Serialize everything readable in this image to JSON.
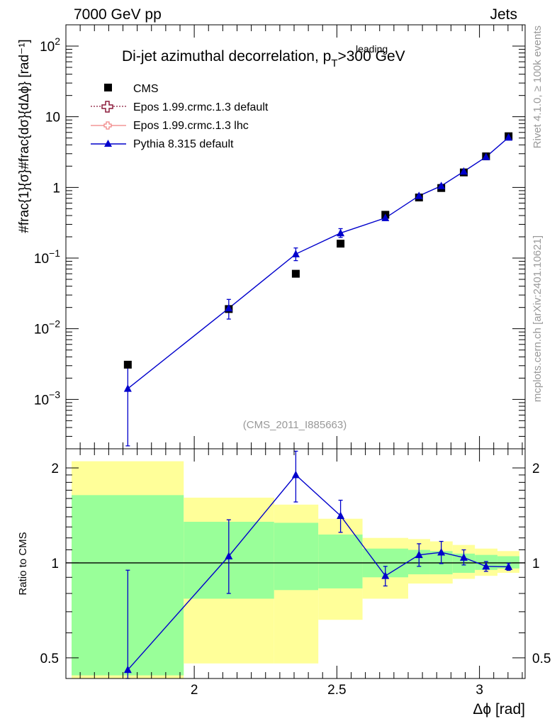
{
  "header": {
    "left": "7000 GeV pp",
    "right": "Jets"
  },
  "side_labels": {
    "rivet": "Rivet 4.1.0, ≥ 100k events",
    "mcplots": "mcplots.cern.ch [arXiv:2401.10621]"
  },
  "chart_data": [
    {
      "type": "scatter",
      "panel": "main",
      "title": "Di-jet azimuthal decorrelation, p",
      "title_sub": "T",
      "title_sup": "leading",
      "title_tail": ">300 GeV",
      "watermark": "(CMS_2011_I885663)",
      "ylabel": "#frac{1}{σ}#frac{dσ}{dΔϕ} [rad⁻¹]",
      "yscale": "log",
      "ylim": [
        0.0002,
        200
      ],
      "xlim": [
        1.55,
        3.16
      ],
      "ytick_labels": [
        {
          "value": 0.001,
          "base": "10",
          "exp": "−3"
        },
        {
          "value": 0.01,
          "base": "10",
          "exp": "−2"
        },
        {
          "value": 0.1,
          "base": "10",
          "exp": "−1"
        },
        {
          "value": 1,
          "base": "1",
          "exp": ""
        },
        {
          "value": 10,
          "base": "10",
          "exp": ""
        },
        {
          "value": 100,
          "base": "10",
          "exp": "2"
        }
      ],
      "legend": {
        "position": "top-left",
        "entries": [
          {
            "label": "CMS",
            "color": "#000000",
            "marker": "square"
          },
          {
            "label": "Epos 1.99.crmc.1.3 default",
            "color": "#8b1a3a",
            "marker": "open-cross",
            "line": "dotted"
          },
          {
            "label": "Epos 1.99.crmc.1.3 lhc",
            "color": "#f08080",
            "marker": "open-cross",
            "line": "solid"
          },
          {
            "label": "Pythia 8.315 default",
            "color": "#0000cc",
            "marker": "triangle",
            "line": "solid"
          }
        ]
      },
      "x": [
        1.767,
        2.121,
        2.356,
        2.513,
        2.67,
        2.788,
        2.866,
        2.945,
        3.023,
        3.102
      ],
      "series": [
        {
          "name": "CMS",
          "color": "#000000",
          "values": [
            0.0031,
            0.019,
            0.06,
            0.16,
            0.41,
            0.72,
            0.98,
            1.63,
            2.75,
            5.3
          ]
        },
        {
          "name": "Pythia 8.315 default",
          "color": "#0000cc",
          "values": [
            0.00142,
            0.0195,
            0.114,
            0.226,
            0.37,
            0.76,
            1.05,
            1.68,
            2.7,
            5.1
          ],
          "err_low": [
            0.0012,
            0.0058,
            0.022,
            0.03,
            0.03,
            0.04,
            0.05,
            0.06,
            0.08,
            0.1
          ],
          "err_high": [
            0.0016,
            0.0065,
            0.025,
            0.035,
            0.032,
            0.042,
            0.055,
            0.065,
            0.085,
            0.11
          ]
        }
      ]
    },
    {
      "type": "line",
      "panel": "ratio",
      "ylabel": "Ratio to CMS",
      "yscale": "log",
      "ylim": [
        0.43,
        2.3
      ],
      "xlim": [
        1.55,
        3.16
      ],
      "ytick_labels": [
        {
          "value": 0.5,
          "label": "0.5"
        },
        {
          "value": 1,
          "label": "1"
        },
        {
          "value": 2,
          "label": "2"
        }
      ],
      "xtick_labels": [
        {
          "value": 2,
          "label": "2"
        },
        {
          "value": 2.5,
          "label": "2.5"
        },
        {
          "value": 3,
          "label": "3"
        }
      ],
      "xlabel": "Δϕ [rad]",
      "reference_line": 1,
      "bands": [
        {
          "x0": 1.57,
          "x1": 1.963,
          "inner": [
            0.44,
            1.64
          ],
          "outer": [
            0.43,
            2.1
          ]
        },
        {
          "x0": 1.963,
          "x1": 2.28,
          "inner": [
            0.77,
            1.35
          ],
          "outer": [
            0.48,
            1.61
          ]
        },
        {
          "x0": 2.28,
          "x1": 2.435,
          "inner": [
            0.82,
            1.34
          ],
          "outer": [
            0.48,
            1.53
          ]
        },
        {
          "x0": 2.435,
          "x1": 2.59,
          "inner": [
            0.83,
            1.23
          ],
          "outer": [
            0.66,
            1.38
          ]
        },
        {
          "x0": 2.59,
          "x1": 2.75,
          "inner": [
            0.9,
            1.11
          ],
          "outer": [
            0.77,
            1.2
          ]
        },
        {
          "x0": 2.75,
          "x1": 2.827,
          "inner": [
            0.92,
            1.1
          ],
          "outer": [
            0.86,
            1.19
          ]
        },
        {
          "x0": 2.827,
          "x1": 2.906,
          "inner": [
            0.92,
            1.09
          ],
          "outer": [
            0.86,
            1.17
          ]
        },
        {
          "x0": 2.906,
          "x1": 2.984,
          "inner": [
            0.93,
            1.07
          ],
          "outer": [
            0.89,
            1.14
          ]
        },
        {
          "x0": 2.984,
          "x1": 3.063,
          "inner": [
            0.95,
            1.06
          ],
          "outer": [
            0.91,
            1.11
          ]
        },
        {
          "x0": 3.063,
          "x1": 3.14,
          "inner": [
            0.96,
            1.05
          ],
          "outer": [
            0.93,
            1.09
          ]
        }
      ],
      "band_colors": {
        "inner": "#99ff99",
        "outer": "#ffff99"
      },
      "x": [
        1.767,
        2.121,
        2.356,
        2.513,
        2.67,
        2.788,
        2.866,
        2.945,
        3.023,
        3.102
      ],
      "series": [
        {
          "name": "Pythia 8.315 default",
          "color": "#0000cc",
          "values": [
            0.458,
            1.05,
            1.9,
            1.41,
            0.91,
            1.06,
            1.08,
            1.04,
            0.975,
            0.972
          ],
          "err_low": [
            0.33,
            0.25,
            0.34,
            0.16,
            0.065,
            0.085,
            0.085,
            0.055,
            0.035,
            0.025
          ],
          "err_high": [
            0.49,
            0.32,
            0.36,
            0.17,
            0.065,
            0.09,
            0.09,
            0.06,
            0.035,
            0.025
          ]
        }
      ]
    }
  ]
}
